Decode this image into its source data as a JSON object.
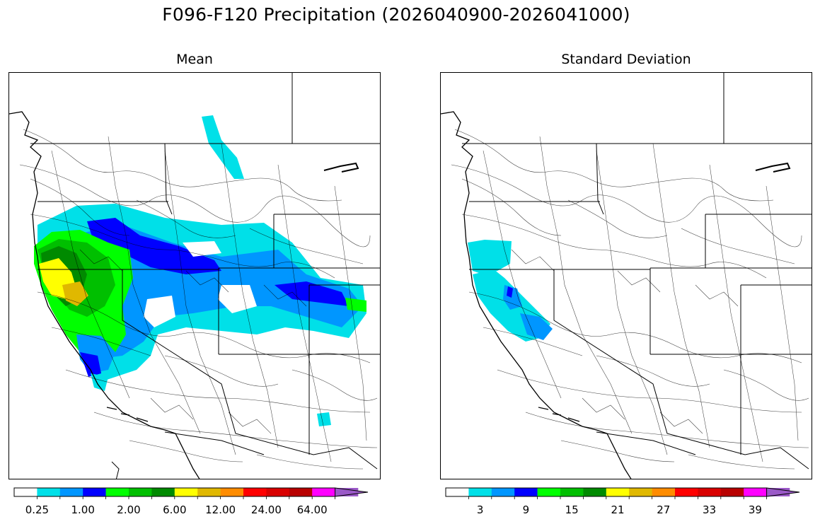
{
  "figure": {
    "title": "F096-F120 Precipitation (2026040900-2026041000)"
  },
  "panels": {
    "mean": {
      "title": "Mean"
    },
    "sd": {
      "title": "Standard Deviation"
    }
  },
  "colorbars": {
    "colors": [
      "#ffffff",
      "#00e0e8",
      "#0096ff",
      "#0000ff",
      "#00ff00",
      "#00bf00",
      "#008a00",
      "#ffff00",
      "#e0b800",
      "#ff8c00",
      "#ff0000",
      "#d90000",
      "#b80000",
      "#ff00ff",
      "#9b59c8"
    ],
    "mean_ticks": [
      "0.25",
      "1.00",
      "2.00",
      "6.00",
      "12.00",
      "24.00",
      "64.00"
    ],
    "sd_ticks": [
      "3",
      "9",
      "15",
      "21",
      "27",
      "33",
      "39"
    ]
  },
  "map_layers": {
    "ocean_side": "Pacific coast (west)",
    "mean_shaded_regions": [
      "California coast and Sierra",
      "Oregon/Idaho interior",
      "Great Basin",
      "Utah/Colorado Rockies",
      "Montana northern Rockies"
    ],
    "sd_shaded_regions": [
      "northern California coast",
      "Sierra Nevada"
    ]
  }
}
